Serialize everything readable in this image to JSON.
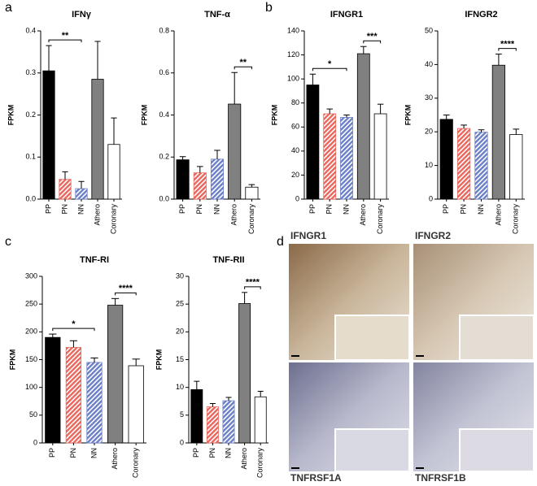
{
  "panels": [
    "a",
    "b",
    "c",
    "d"
  ],
  "images": [
    {
      "label": "IFNGR1"
    },
    {
      "label": "IFNGR2"
    },
    {
      "label": "TNFRSF1A"
    },
    {
      "label": "TNFRSF1B"
    }
  ],
  "chart_data": [
    {
      "type": "bar",
      "title": "IFNγ",
      "ylabel": "FPKM",
      "categories": [
        "PP",
        "PN",
        "NN",
        "Athero",
        "Coronary"
      ],
      "values": [
        0.305,
        0.047,
        0.025,
        0.285,
        0.13
      ],
      "errors": [
        0.06,
        0.018,
        0.017,
        0.09,
        0.063
      ],
      "colors": [
        "#000000",
        "#e8665c",
        "#6b7fc7",
        "#808080",
        "#ffffff"
      ],
      "hatched": [
        false,
        true,
        true,
        false,
        false
      ],
      "ylim": [
        0,
        0.4
      ],
      "yticks": [
        {
          "value": 0,
          "label": "0.0"
        },
        0.1,
        0.2,
        0.3,
        0.4
      ],
      "annotations": [
        {
          "text": "**",
          "between": [
            "PP",
            "NN"
          ]
        }
      ]
    },
    {
      "type": "bar",
      "title": "TNF-α",
      "ylabel": "FPKM",
      "categories": [
        "PP",
        "PN",
        "NN",
        "Athero",
        "Coronary"
      ],
      "values": [
        0.187,
        0.125,
        0.19,
        0.452,
        0.057
      ],
      "errors": [
        0.015,
        0.03,
        0.042,
        0.15,
        0.012
      ],
      "colors": [
        "#000000",
        "#e8665c",
        "#6b7fc7",
        "#808080",
        "#ffffff"
      ],
      "hatched": [
        false,
        true,
        true,
        false,
        false
      ],
      "ylim": [
        0,
        0.8
      ],
      "yticks": [
        {
          "value": 0,
          "label": "0.0"
        },
        0.2,
        0.4,
        0.6,
        0.8
      ],
      "annotations": [
        {
          "text": "**",
          "between": [
            "Athero",
            "Coronary"
          ]
        }
      ]
    },
    {
      "type": "bar",
      "title": "IFNGR1",
      "ylabel": "FPKM",
      "categories": [
        "PP",
        "PN",
        "NN",
        "Athero",
        "Coronary"
      ],
      "values": [
        95,
        71,
        68,
        121,
        71
      ],
      "errors": [
        9,
        4,
        2,
        6,
        8
      ],
      "colors": [
        "#000000",
        "#e8665c",
        "#6b7fc7",
        "#808080",
        "#ffffff"
      ],
      "hatched": [
        false,
        true,
        true,
        false,
        false
      ],
      "ylim": [
        0,
        140
      ],
      "yticks": [
        0,
        20,
        40,
        60,
        80,
        100,
        120,
        140
      ],
      "annotations": [
        {
          "text": "*",
          "between": [
            "PP",
            "NN"
          ]
        },
        {
          "text": "***",
          "between": [
            "Athero",
            "Coronary"
          ]
        }
      ]
    },
    {
      "type": "bar",
      "title": "IFNGR2",
      "ylabel": "FPKM",
      "categories": [
        "PP",
        "PN",
        "NN",
        "Athero",
        "Coronary"
      ],
      "values": [
        23.7,
        21,
        19.9,
        39.8,
        19.2
      ],
      "errors": [
        1.3,
        1,
        0.7,
        3.3,
        1.6
      ],
      "colors": [
        "#000000",
        "#e8665c",
        "#6b7fc7",
        "#808080",
        "#ffffff"
      ],
      "hatched": [
        false,
        true,
        true,
        false,
        false
      ],
      "ylim": [
        0,
        50
      ],
      "yticks": [
        0,
        10,
        20,
        30,
        40,
        50
      ],
      "annotations": [
        {
          "text": "****",
          "between": [
            "Athero",
            "Coronary"
          ]
        }
      ]
    },
    {
      "type": "bar",
      "title": "TNF-RI",
      "ylabel": "FPKM",
      "categories": [
        "PP",
        "PN",
        "NN",
        "Athero",
        "Coronary"
      ],
      "values": [
        190,
        172,
        145,
        248,
        139
      ],
      "errors": [
        6,
        12,
        8,
        12,
        12
      ],
      "colors": [
        "#000000",
        "#e8665c",
        "#6b7fc7",
        "#808080",
        "#ffffff"
      ],
      "hatched": [
        false,
        true,
        true,
        false,
        false
      ],
      "ylim": [
        0,
        300
      ],
      "yticks": [
        0,
        50,
        100,
        150,
        200,
        250,
        300
      ],
      "annotations": [
        {
          "text": "*",
          "between": [
            "PP",
            "NN"
          ]
        },
        {
          "text": "****",
          "between": [
            "Athero",
            "Coronary"
          ]
        }
      ]
    },
    {
      "type": "bar",
      "title": "TNF-RII",
      "ylabel": "FPKM",
      "categories": [
        "PP",
        "PN",
        "NN",
        "Athero",
        "Coronary"
      ],
      "values": [
        9.6,
        6.5,
        7.6,
        25.1,
        8.3
      ],
      "errors": [
        1.5,
        0.6,
        0.6,
        2,
        1
      ],
      "colors": [
        "#000000",
        "#e8665c",
        "#6b7fc7",
        "#808080",
        "#ffffff"
      ],
      "hatched": [
        false,
        true,
        true,
        false,
        false
      ],
      "ylim": [
        0,
        30
      ],
      "yticks": [
        0,
        5,
        10,
        15,
        20,
        25,
        30
      ],
      "annotations": [
        {
          "text": "****",
          "between": [
            "Athero",
            "Coronary"
          ]
        }
      ]
    }
  ]
}
